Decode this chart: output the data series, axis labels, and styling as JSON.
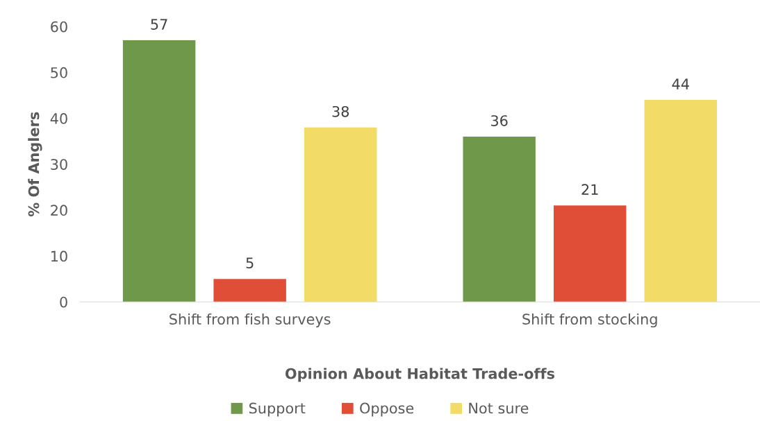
{
  "chart_data": {
    "type": "bar",
    "xlabel": "Opinion About Habitat Trade-offs",
    "ylabel": "% Of Anglers",
    "categories": [
      "Shift from fish surveys",
      "Shift from stocking"
    ],
    "series": [
      {
        "name": "Support",
        "color": "#70984a",
        "values": [
          57,
          36
        ]
      },
      {
        "name": "Oppose",
        "color": "#e04e38",
        "values": [
          5,
          21
        ]
      },
      {
        "name": "Not sure",
        "color": "#f2db66",
        "values": [
          38,
          44
        ]
      }
    ],
    "ylim": [
      0,
      60
    ],
    "yticks": [
      0,
      10,
      20,
      30,
      40,
      50,
      60
    ],
    "data_labels": true,
    "grid": false,
    "legend": "bottom"
  }
}
